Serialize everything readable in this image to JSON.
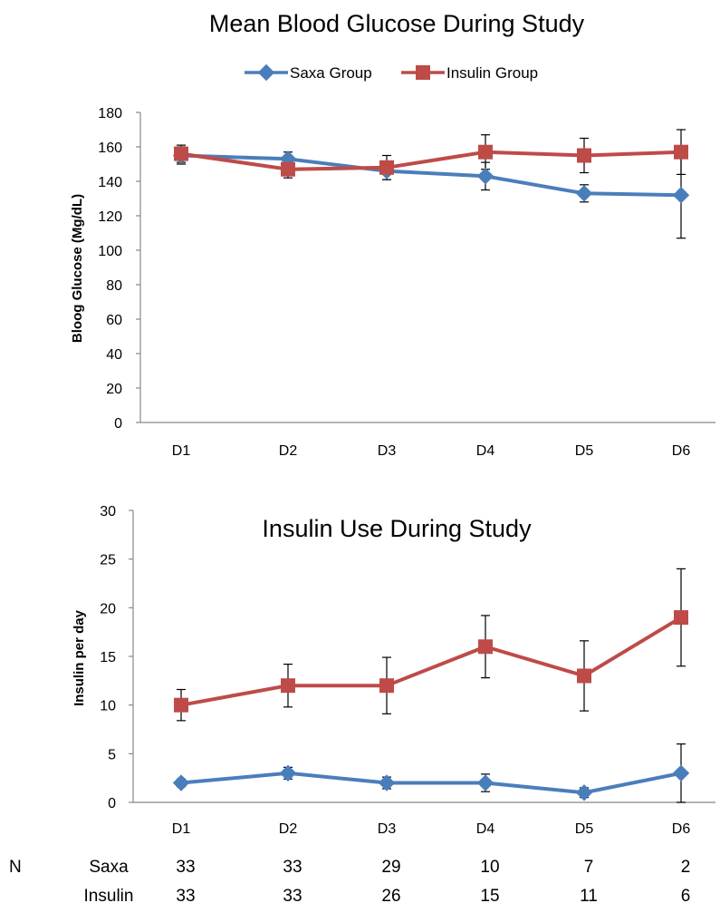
{
  "colors": {
    "saxa": "#4a7ebb",
    "insulin": "#be4b48",
    "axis": "#888888",
    "error": "#000000"
  },
  "legend": {
    "saxa": "Saxa Group",
    "insulin": "Insulin Group"
  },
  "chart_data": [
    {
      "type": "line",
      "title": "Mean Blood Glucose During Study",
      "ylabel": "Bloog Glucose (Mg/dL)",
      "xlabel": "",
      "categories": [
        "D1",
        "D2",
        "D3",
        "D4",
        "D5",
        "D6"
      ],
      "ylim": [
        0,
        180
      ],
      "yticks": [
        0,
        20,
        40,
        60,
        80,
        100,
        120,
        140,
        160,
        180
      ],
      "legend_position": "top",
      "grid": false,
      "series": [
        {
          "name": "Saxa Group",
          "marker": "diamond",
          "values": [
            155,
            153,
            146,
            143,
            133,
            132
          ],
          "err": [
            5,
            4,
            5,
            8,
            5,
            25
          ]
        },
        {
          "name": "Insulin Group",
          "marker": "square",
          "values": [
            156,
            147,
            148,
            157,
            155,
            157
          ],
          "err": [
            5,
            5,
            7,
            10,
            10,
            13
          ]
        }
      ]
    },
    {
      "type": "line",
      "title": "Insulin Use During Study",
      "ylabel": "Insulin per day",
      "xlabel": "",
      "categories": [
        "D1",
        "D2",
        "D3",
        "D4",
        "D5",
        "D6"
      ],
      "ylim": [
        0,
        30
      ],
      "yticks": [
        0,
        5,
        10,
        15,
        20,
        25,
        30
      ],
      "legend_position": "none",
      "grid": false,
      "series": [
        {
          "name": "Saxa Group",
          "marker": "diamond",
          "values": [
            2,
            3,
            2,
            2,
            1,
            3
          ],
          "err": [
            0.4,
            0.6,
            0.6,
            0.9,
            0.5,
            3
          ]
        },
        {
          "name": "Insulin Group",
          "marker": "square",
          "values": [
            10,
            12,
            12,
            16,
            13,
            19
          ],
          "err": [
            1.6,
            2.2,
            2.9,
            3.2,
            3.6,
            5
          ]
        }
      ]
    }
  ],
  "n_table": {
    "label": "N",
    "rows": [
      {
        "name": "Saxa",
        "values": [
          "33",
          "33",
          "29",
          "10",
          "7",
          "2"
        ]
      },
      {
        "name": "Insulin",
        "values": [
          "33",
          "33",
          "26",
          "15",
          "11",
          "6"
        ]
      }
    ]
  }
}
